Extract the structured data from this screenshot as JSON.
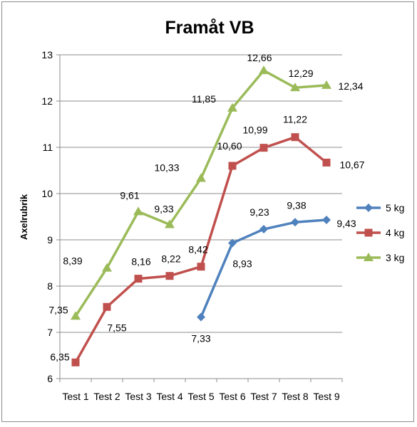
{
  "chart_data": {
    "type": "line",
    "title": "Framåt VB",
    "xlabel": "",
    "ylabel": "Axelrubrik",
    "categories": [
      "Test 1",
      "Test 2",
      "Test 3",
      "Test 4",
      "Test 5",
      "Test 6",
      "Test 7",
      "Test 8",
      "Test 9"
    ],
    "ylim": [
      6,
      13
    ],
    "yticks": [
      "6",
      "7",
      "8",
      "9",
      "10",
      "11",
      "12",
      "13"
    ],
    "grid": true,
    "legend_position": "right",
    "series": [
      {
        "name": "5 kg",
        "color": "#4f81bd",
        "marker": "diamond",
        "values": [
          null,
          null,
          null,
          null,
          7.33,
          8.93,
          9.23,
          9.38,
          9.43
        ],
        "labels": [
          null,
          null,
          null,
          null,
          "7,33",
          "8,93",
          "9,23",
          "9,38",
          "9,43"
        ]
      },
      {
        "name": "4 kg",
        "color": "#c0504d",
        "marker": "square",
        "values": [
          6.35,
          7.55,
          8.16,
          8.22,
          8.42,
          10.6,
          10.99,
          11.22,
          10.67
        ],
        "labels": [
          "6,35",
          "7,55",
          "8,16",
          "8,22",
          "8,42",
          "10,60",
          "10,99",
          "11,22",
          "10,67"
        ]
      },
      {
        "name": "3 kg",
        "color": "#9bbb59",
        "marker": "triangle",
        "values": [
          7.35,
          8.39,
          9.61,
          9.33,
          10.33,
          11.85,
          12.66,
          12.29,
          12.34
        ],
        "labels": [
          "7,35",
          "8,39",
          "9,61",
          "9,33",
          "10,33",
          "11,85",
          "12,66",
          "12,29",
          "12,34"
        ]
      }
    ]
  }
}
